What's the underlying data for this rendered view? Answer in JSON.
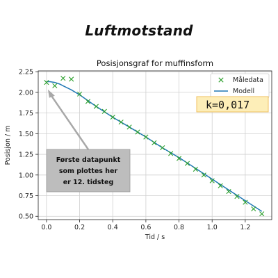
{
  "page": {
    "title": "Luftmotstand"
  },
  "chart_data": {
    "type": "scatter",
    "title": "Posisjonsgraf for muffinsform",
    "xlabel": "Tid / s",
    "ylabel": "Posisjon / m",
    "xlim": [
      -0.05,
      1.36
    ],
    "ylim": [
      0.46,
      2.26
    ],
    "xticks": [
      0.0,
      0.2,
      0.4,
      0.6,
      0.8,
      1.0,
      1.2
    ],
    "xtick_labels": [
      "0.0",
      "0.2",
      "0.4",
      "0.6",
      "0.8",
      "1.0",
      "1.2"
    ],
    "yticks": [
      0.5,
      0.75,
      1.0,
      1.25,
      1.5,
      1.75,
      2.0,
      2.25
    ],
    "ytick_labels": [
      "0.50",
      "0.75",
      "1.00",
      "1.25",
      "1.50",
      "1.75",
      "2.00",
      "2.25"
    ],
    "grid": true,
    "legend_position": "top-right",
    "series": [
      {
        "name": "Måledata",
        "kind": "scatter",
        "marker": "x",
        "color": "#2ca02c",
        "x": [
          0.0,
          0.05,
          0.1,
          0.15,
          0.2,
          0.25,
          0.3,
          0.35,
          0.4,
          0.45,
          0.5,
          0.55,
          0.6,
          0.65,
          0.7,
          0.75,
          0.8,
          0.85,
          0.9,
          0.95,
          1.0,
          1.05,
          1.1,
          1.15,
          1.2,
          1.25,
          1.3
        ],
        "y": [
          2.12,
          2.08,
          2.17,
          2.16,
          1.98,
          1.89,
          1.83,
          1.77,
          1.7,
          1.64,
          1.58,
          1.52,
          1.46,
          1.39,
          1.33,
          1.26,
          1.2,
          1.14,
          1.07,
          1.0,
          0.93,
          0.87,
          0.8,
          0.74,
          0.67,
          0.59,
          0.53
        ]
      },
      {
        "name": "Modell",
        "kind": "line",
        "color": "#1f77b4",
        "x": [
          0.0,
          0.02,
          0.05,
          0.08,
          0.1,
          0.15,
          0.2,
          0.25,
          0.3,
          0.4,
          0.5,
          0.6,
          0.7,
          0.8,
          0.9,
          1.0,
          1.1,
          1.2,
          1.3
        ],
        "y": [
          2.13,
          2.13,
          2.12,
          2.1,
          2.08,
          2.03,
          1.97,
          1.9,
          1.83,
          1.7,
          1.58,
          1.46,
          1.33,
          1.21,
          1.08,
          0.95,
          0.82,
          0.69,
          0.56
        ]
      }
    ],
    "annotations": [
      {
        "name": "k-value",
        "text": "k=0,017",
        "box_color": "#fdeeb8",
        "border_color": "#f0c060"
      },
      {
        "name": "first-point-note",
        "lines": [
          "Første datapunkt",
          "som plottes her",
          "er 12. tidsteg"
        ],
        "box_color": "#bdbdbd",
        "arrow_color": "#a8a8a8",
        "points_to": {
          "x": 0.0,
          "y": 2.06
        }
      }
    ]
  }
}
